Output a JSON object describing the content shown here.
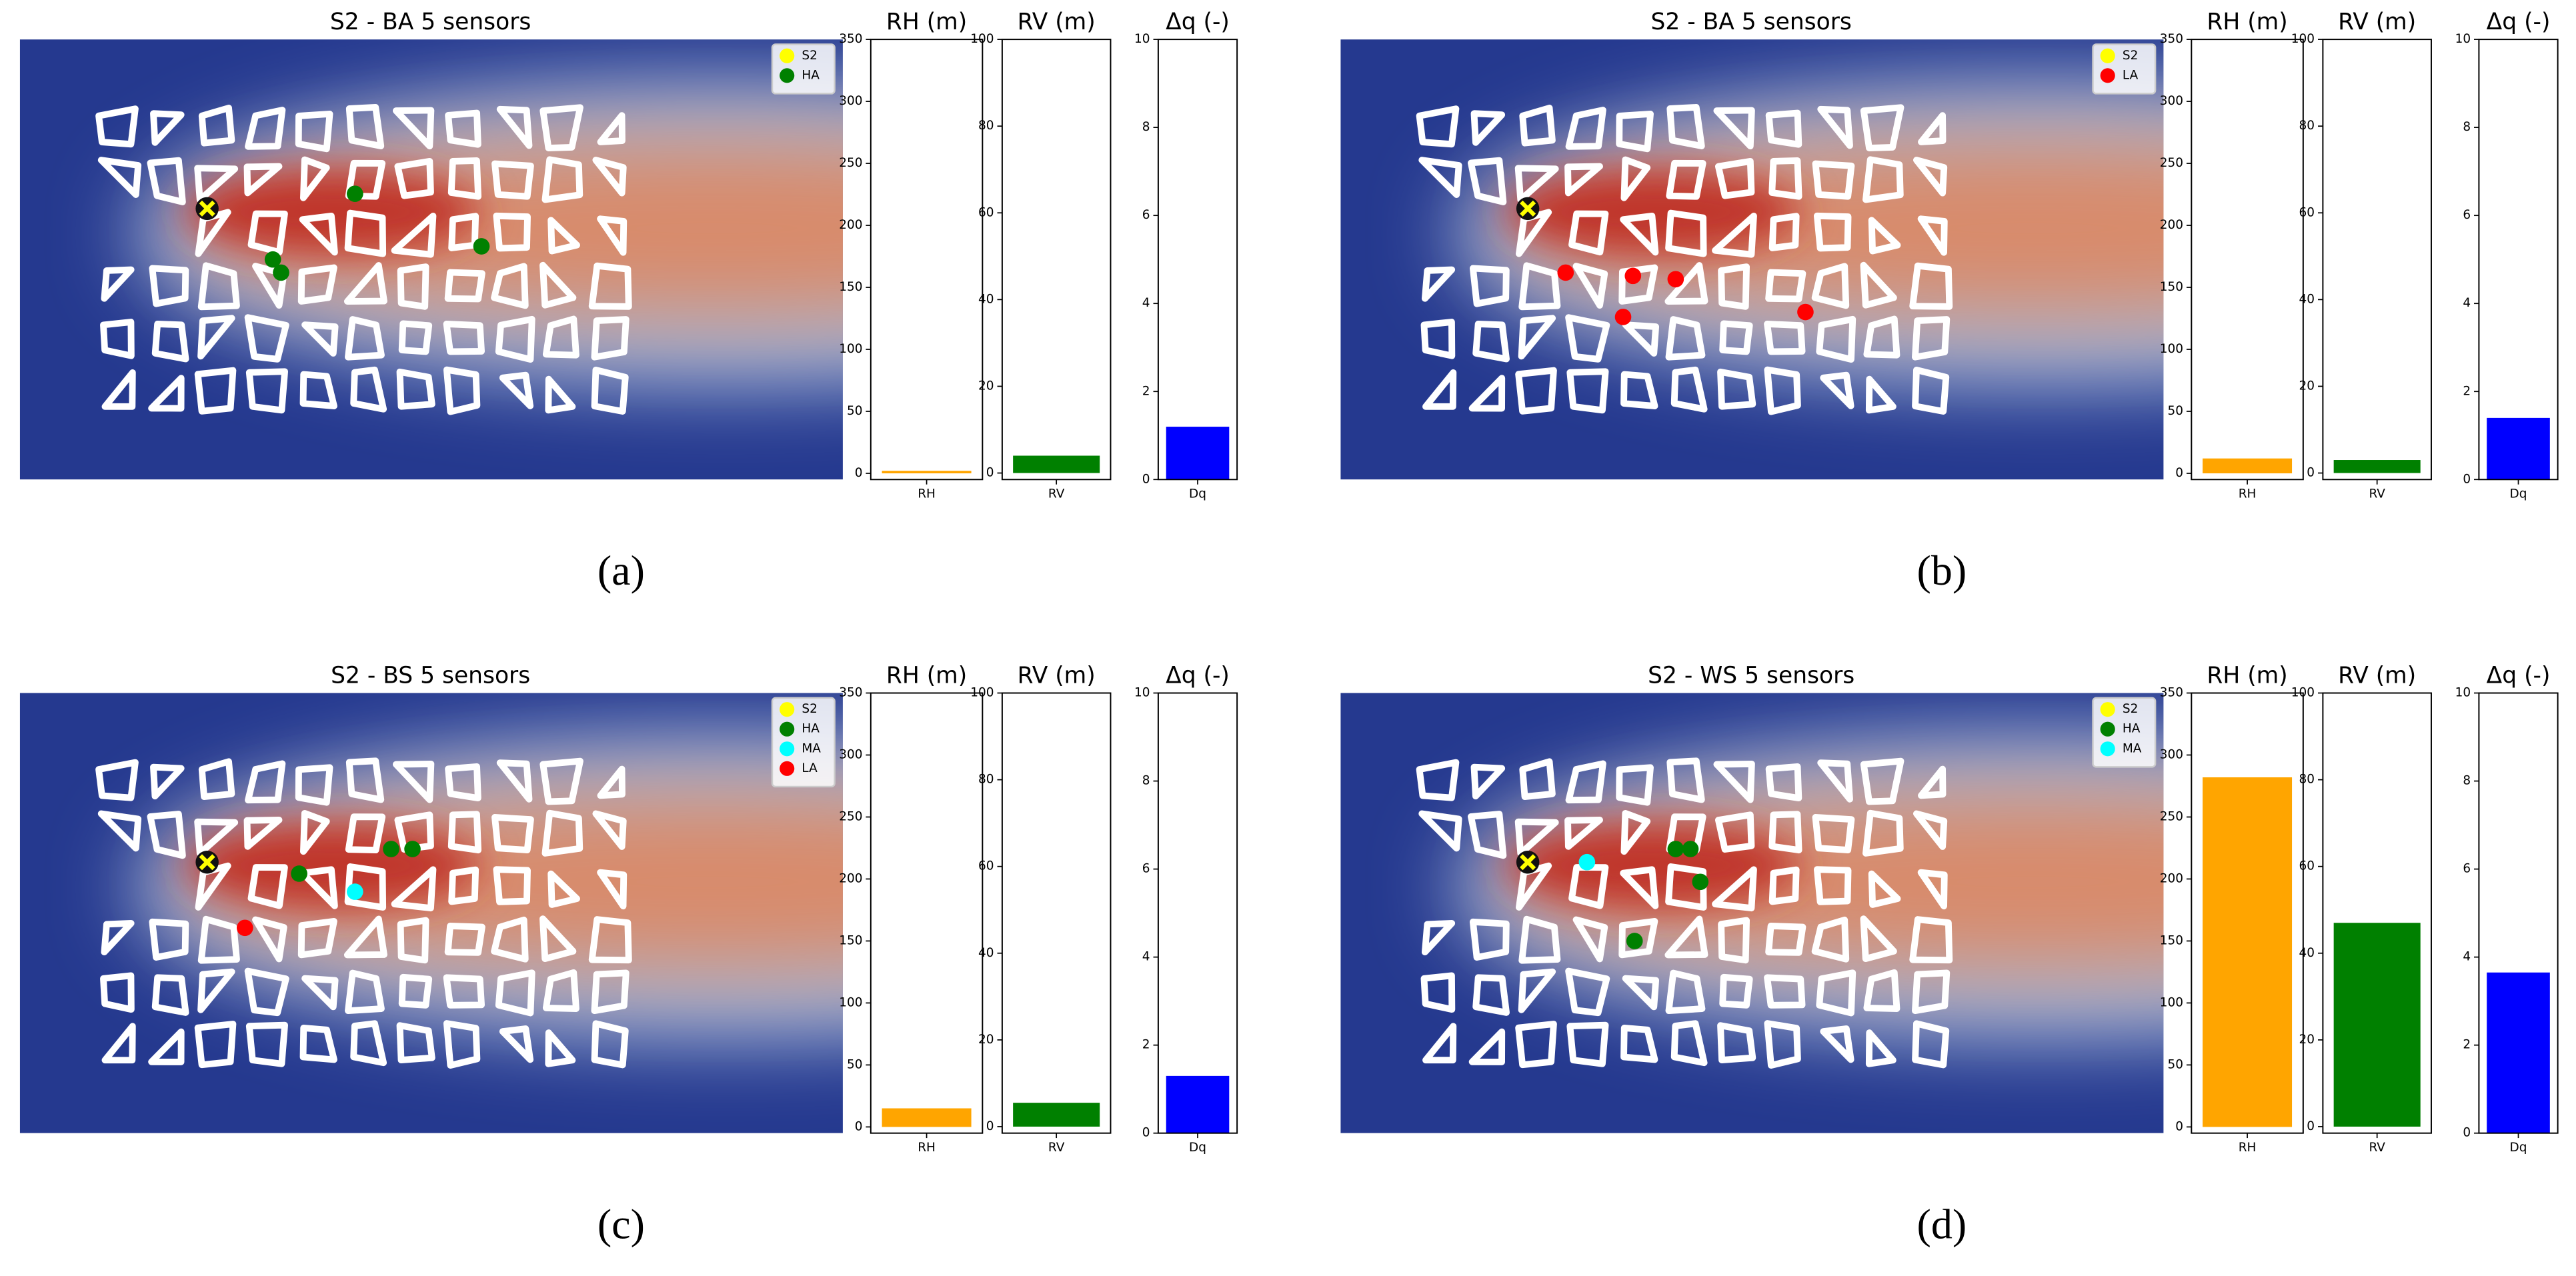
{
  "chart_data": [
    {
      "type": "map",
      "title": "S2 - BA 5 sensors",
      "label": "(a)",
      "legend": [
        {
          "name": "S2",
          "color": "#ffff00"
        },
        {
          "name": "HA",
          "color": "#008000"
        }
      ]
    },
    {
      "type": "bar",
      "title": "RH (m)",
      "categories": [
        "RH"
      ],
      "values": [
        2
      ],
      "color": "#ffa500",
      "ylim": [
        -5,
        350
      ],
      "yticks": [
        0,
        50,
        100,
        150,
        200,
        250,
        300,
        350
      ]
    },
    {
      "type": "bar",
      "title": "RV (m)",
      "categories": [
        "RV"
      ],
      "values": [
        4
      ],
      "color": "#008000",
      "ylim": [
        -1.5,
        100
      ],
      "yticks": [
        0,
        20,
        40,
        60,
        80,
        100
      ]
    },
    {
      "type": "bar",
      "title": "Δq (-)",
      "categories": [
        "Dq"
      ],
      "values": [
        1.2
      ],
      "color": "#0000ff",
      "ylim": [
        0,
        10
      ],
      "yticks": [
        0,
        2,
        4,
        6,
        8,
        10
      ]
    },
    {
      "type": "map",
      "title": "S2 - BA 5 sensors",
      "label": "(b)",
      "legend": [
        {
          "name": "S2",
          "color": "#ffff00"
        },
        {
          "name": "LA",
          "color": "#ff0000"
        }
      ]
    },
    {
      "type": "bar",
      "title": "RH (m)",
      "categories": [
        "RH"
      ],
      "values": [
        12
      ],
      "color": "#ffa500",
      "ylim": [
        -5,
        350
      ],
      "yticks": [
        0,
        50,
        100,
        150,
        200,
        250,
        300,
        350
      ]
    },
    {
      "type": "bar",
      "title": "RV (m)",
      "categories": [
        "RV"
      ],
      "values": [
        3
      ],
      "color": "#008000",
      "ylim": [
        -1.5,
        100
      ],
      "yticks": [
        0,
        20,
        40,
        60,
        80,
        100
      ]
    },
    {
      "type": "bar",
      "title": "Δq (-)",
      "categories": [
        "Dq"
      ],
      "values": [
        1.4
      ],
      "color": "#0000ff",
      "ylim": [
        0,
        10
      ],
      "yticks": [
        0,
        2,
        4,
        6,
        8,
        10
      ]
    },
    {
      "type": "map",
      "title": "S2 - BS 5 sensors",
      "label": "(c)",
      "legend": [
        {
          "name": "S2",
          "color": "#ffff00"
        },
        {
          "name": "HA",
          "color": "#008000"
        },
        {
          "name": "MA",
          "color": "#00ffff"
        },
        {
          "name": "LA",
          "color": "#ff0000"
        }
      ]
    },
    {
      "type": "bar",
      "title": "RH (m)",
      "categories": [
        "RH"
      ],
      "values": [
        15
      ],
      "color": "#ffa500",
      "ylim": [
        -5,
        350
      ],
      "yticks": [
        0,
        50,
        100,
        150,
        200,
        250,
        300,
        350
      ]
    },
    {
      "type": "bar",
      "title": "RV (m)",
      "categories": [
        "RV"
      ],
      "values": [
        5.5
      ],
      "color": "#008000",
      "ylim": [
        -1.5,
        100
      ],
      "yticks": [
        0,
        20,
        40,
        60,
        80,
        100
      ]
    },
    {
      "type": "bar",
      "title": "Δq (-)",
      "categories": [
        "Dq"
      ],
      "values": [
        1.3
      ],
      "color": "#0000ff",
      "ylim": [
        0,
        10
      ],
      "yticks": [
        0,
        2,
        4,
        6,
        8,
        10
      ]
    },
    {
      "type": "map",
      "title": "S2 - WS 5 sensors",
      "label": "(d)",
      "legend": [
        {
          "name": "S2",
          "color": "#ffff00"
        },
        {
          "name": "HA",
          "color": "#008000"
        },
        {
          "name": "MA",
          "color": "#00ffff"
        }
      ]
    },
    {
      "type": "bar",
      "title": "RH (m)",
      "categories": [
        "RH"
      ],
      "values": [
        282
      ],
      "color": "#ffa500",
      "ylim": [
        -5,
        350
      ],
      "yticks": [
        0,
        50,
        100,
        150,
        200,
        250,
        300,
        350
      ]
    },
    {
      "type": "bar",
      "title": "RV (m)",
      "categories": [
        "RV"
      ],
      "values": [
        47
      ],
      "color": "#008000",
      "ylim": [
        -1.5,
        100
      ],
      "yticks": [
        0,
        20,
        40,
        60,
        80,
        100
      ]
    },
    {
      "type": "bar",
      "title": "Δq (-)",
      "categories": [
        "Dq"
      ],
      "values": [
        3.65
      ],
      "color": "#0000ff",
      "ylim": [
        0,
        10
      ],
      "yticks": [
        0,
        2,
        4,
        6,
        8,
        10
      ]
    }
  ]
}
